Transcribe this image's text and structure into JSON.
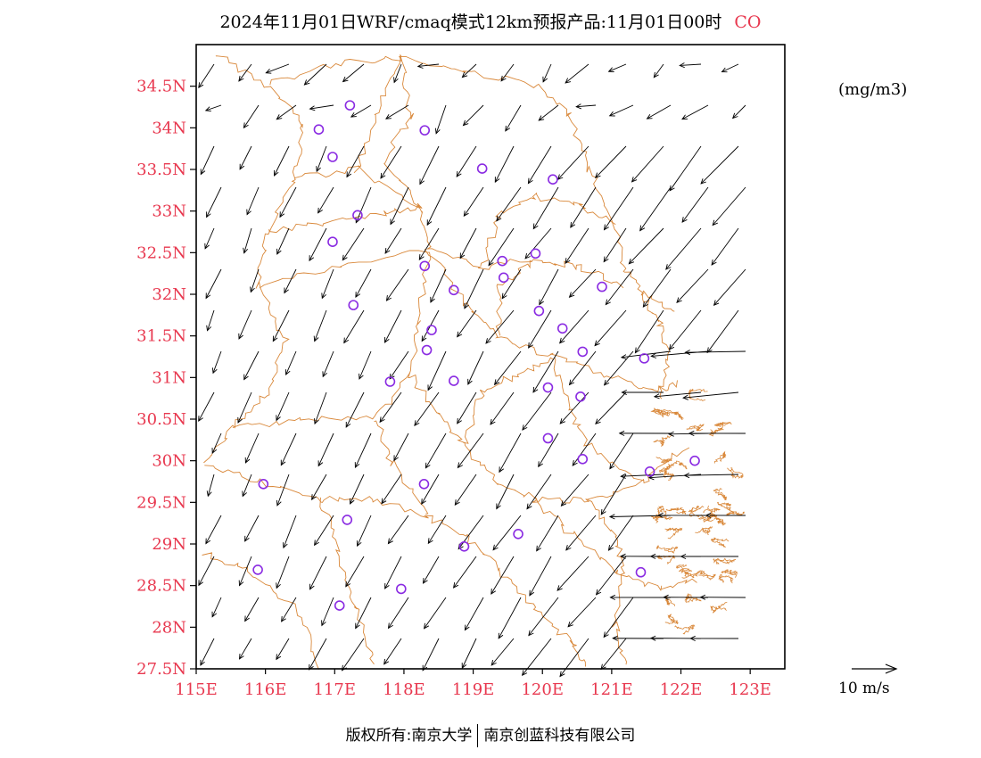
{
  "title": {
    "main": "2024年11月01日WRF/cmaq模式12km预报产品:11月01日00时",
    "species": "CO"
  },
  "units": "(mg/m3)",
  "wind_scale": {
    "label": "10 m/s",
    "speed_ms": 10
  },
  "copyright": {
    "left": "版权所有:南京大学",
    "right": "南京创蓝科技有限公司"
  },
  "map": {
    "lon_range": [
      115,
      123.5
    ],
    "lat_range": [
      27.5,
      35.0
    ],
    "lon_ticks": [
      {
        "value": 115,
        "label": "115E"
      },
      {
        "value": 116,
        "label": "116E"
      },
      {
        "value": 117,
        "label": "117E"
      },
      {
        "value": 118,
        "label": "118E"
      },
      {
        "value": 119,
        "label": "119E"
      },
      {
        "value": 120,
        "label": "120E"
      },
      {
        "value": 121,
        "label": "121E"
      },
      {
        "value": 122,
        "label": "122E"
      },
      {
        "value": 123,
        "label": "123E"
      }
    ],
    "lat_ticks": [
      {
        "value": 27.5,
        "label": "27.5N"
      },
      {
        "value": 28,
        "label": "28N"
      },
      {
        "value": 28.5,
        "label": "28.5N"
      },
      {
        "value": 29,
        "label": "29N"
      },
      {
        "value": 29.5,
        "label": "29.5N"
      },
      {
        "value": 30,
        "label": "30N"
      },
      {
        "value": 30.5,
        "label": "30.5N"
      },
      {
        "value": 31,
        "label": "31N"
      },
      {
        "value": 31.5,
        "label": "31.5N"
      },
      {
        "value": 32,
        "label": "32N"
      },
      {
        "value": 32.5,
        "label": "32.5N"
      },
      {
        "value": 33,
        "label": "33N"
      },
      {
        "value": 33.5,
        "label": "33.5N"
      },
      {
        "value": 34,
        "label": "34N"
      },
      {
        "value": 34.5,
        "label": "34.5N"
      }
    ],
    "colors": {
      "tick_label": "#e8384f",
      "boundary": "#d9883a",
      "station": "#8a2be2",
      "wind": "#000000"
    },
    "stations": [
      {
        "lon": 117.22,
        "lat": 34.27
      },
      {
        "lon": 116.77,
        "lat": 33.98
      },
      {
        "lon": 118.3,
        "lat": 33.97
      },
      {
        "lon": 116.97,
        "lat": 33.65
      },
      {
        "lon": 119.13,
        "lat": 33.51
      },
      {
        "lon": 120.15,
        "lat": 33.38
      },
      {
        "lon": 117.33,
        "lat": 32.95
      },
      {
        "lon": 116.97,
        "lat": 32.63
      },
      {
        "lon": 119.9,
        "lat": 32.49
      },
      {
        "lon": 119.42,
        "lat": 32.4
      },
      {
        "lon": 118.3,
        "lat": 32.34
      },
      {
        "lon": 119.44,
        "lat": 32.2
      },
      {
        "lon": 118.72,
        "lat": 32.05
      },
      {
        "lon": 120.86,
        "lat": 32.09
      },
      {
        "lon": 117.27,
        "lat": 31.87
      },
      {
        "lon": 119.95,
        "lat": 31.8
      },
      {
        "lon": 120.29,
        "lat": 31.59
      },
      {
        "lon": 118.4,
        "lat": 31.57
      },
      {
        "lon": 118.33,
        "lat": 31.33
      },
      {
        "lon": 120.58,
        "lat": 31.31
      },
      {
        "lon": 121.47,
        "lat": 31.23
      },
      {
        "lon": 117.8,
        "lat": 30.95
      },
      {
        "lon": 118.72,
        "lat": 30.96
      },
      {
        "lon": 120.08,
        "lat": 30.88
      },
      {
        "lon": 120.55,
        "lat": 30.77
      },
      {
        "lon": 120.08,
        "lat": 30.27
      },
      {
        "lon": 120.58,
        "lat": 30.02
      },
      {
        "lon": 121.55,
        "lat": 29.87
      },
      {
        "lon": 122.2,
        "lat": 30.0
      },
      {
        "lon": 115.97,
        "lat": 29.72
      },
      {
        "lon": 118.29,
        "lat": 29.72
      },
      {
        "lon": 117.18,
        "lat": 29.29
      },
      {
        "lon": 119.65,
        "lat": 29.12
      },
      {
        "lon": 118.87,
        "lat": 28.97
      },
      {
        "lon": 115.89,
        "lat": 28.69
      },
      {
        "lon": 121.42,
        "lat": 28.66
      },
      {
        "lon": 117.96,
        "lat": 28.46
      },
      {
        "lon": 117.07,
        "lat": 28.26
      }
    ]
  }
}
